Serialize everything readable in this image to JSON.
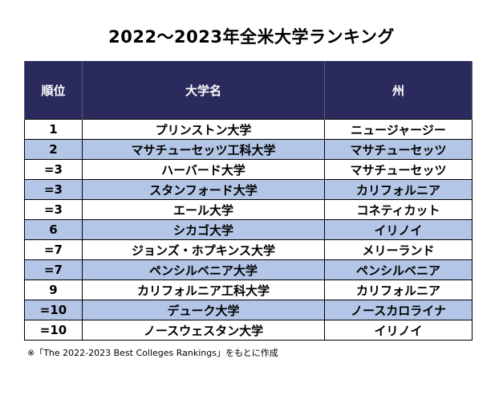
{
  "title": "2022〜2023年全米大学ランキング",
  "table": {
    "headers": {
      "rank": "順位",
      "name": "大学名",
      "state": "州"
    },
    "rows": [
      {
        "rank": "1",
        "name": "プリンストン大学",
        "state": "ニュージャージー"
      },
      {
        "rank": "2",
        "name": "マサチューセッツ工科大学",
        "state": "マサチューセッツ"
      },
      {
        "rank": "=3",
        "name": "ハーバード大学",
        "state": "マサチューセッツ"
      },
      {
        "rank": "=3",
        "name": "スタンフォード大学",
        "state": "カリフォルニア"
      },
      {
        "rank": "=3",
        "name": "エール大学",
        "state": "コネティカット"
      },
      {
        "rank": "6",
        "name": "シカゴ大学",
        "state": "イリノイ"
      },
      {
        "rank": "=7",
        "name": "ジョンズ・ホプキンス大学",
        "state": "メリーランド"
      },
      {
        "rank": "=7",
        "name": "ペンシルベニア大学",
        "state": "ペンシルベニア"
      },
      {
        "rank": "9",
        "name": "カリフォルニア工科大学",
        "state": "カリフォルニア"
      },
      {
        "rank": "=10",
        "name": "デューク大学",
        "state": "ノースカロライナ"
      },
      {
        "rank": "=10",
        "name": "ノースウェスタン大学",
        "state": "イリノイ"
      }
    ]
  },
  "note": "※「The 2022-2023 Best Colleges Rankings」をもとに作成",
  "colors": {
    "header_bg": "#2a2a5c",
    "header_text": "#ffffff",
    "alt_row_bg": "#b4c6e7",
    "row_bg": "#ffffff"
  }
}
